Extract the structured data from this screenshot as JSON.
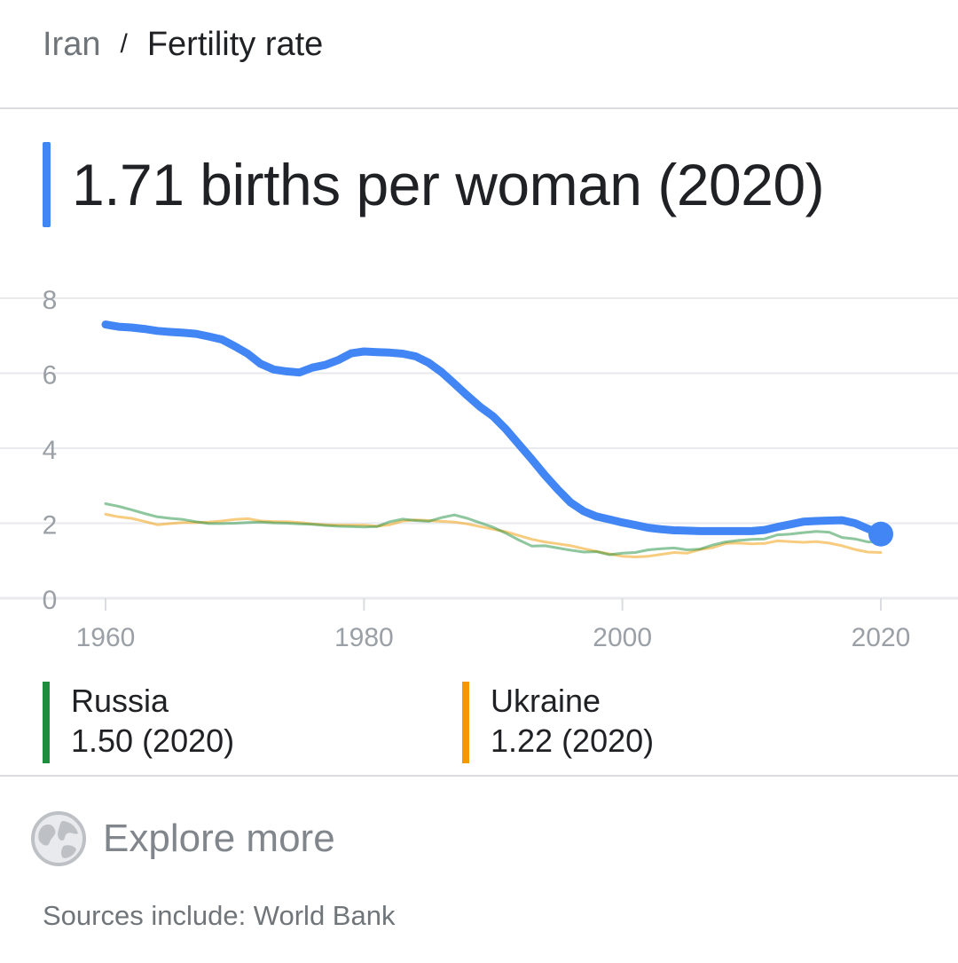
{
  "breadcrumb": {
    "country": "Iran",
    "separator": "/",
    "topic": "Fertility rate"
  },
  "headline": {
    "value_text": "1.71 births per woman (2020)",
    "accent_color": "#4285F4"
  },
  "legend": [
    {
      "name": "Russia",
      "value_text": "1.50 (2020)",
      "color": "#1E8E3E"
    },
    {
      "name": "Ukraine",
      "value_text": "1.22 (2020)",
      "color": "#F29900"
    }
  ],
  "explore": {
    "label": "Explore more",
    "icon": "globe-icon"
  },
  "sources": {
    "text": "Sources include: World Bank"
  },
  "chart_data": {
    "type": "line",
    "x_ticks": [
      "1960",
      "1980",
      "2000",
      "2020"
    ],
    "y_ticks": [
      "0",
      "2",
      "4",
      "6",
      "8"
    ],
    "xlim": [
      1960,
      2020
    ],
    "ylim": [
      0,
      8
    ],
    "grid": true,
    "series": [
      {
        "name": "Iran",
        "color": "#4285F4",
        "x": [
          1960,
          1961,
          1962,
          1963,
          1964,
          1965,
          1966,
          1967,
          1968,
          1969,
          1970,
          1971,
          1972,
          1973,
          1974,
          1975,
          1976,
          1977,
          1978,
          1979,
          1980,
          1981,
          1982,
          1983,
          1984,
          1985,
          1986,
          1987,
          1988,
          1989,
          1990,
          1991,
          1992,
          1993,
          1994,
          1995,
          1996,
          1997,
          1998,
          1999,
          2000,
          2001,
          2002,
          2003,
          2004,
          2005,
          2006,
          2007,
          2008,
          2009,
          2010,
          2011,
          2012,
          2013,
          2014,
          2015,
          2016,
          2017,
          2018,
          2019,
          2020
        ],
        "y": [
          7.3,
          7.24,
          7.22,
          7.18,
          7.13,
          7.1,
          7.08,
          7.05,
          6.98,
          6.9,
          6.72,
          6.52,
          6.25,
          6.1,
          6.05,
          6.02,
          6.15,
          6.22,
          6.35,
          6.53,
          6.58,
          6.56,
          6.55,
          6.52,
          6.45,
          6.28,
          6.03,
          5.72,
          5.4,
          5.1,
          4.85,
          4.5,
          4.1,
          3.7,
          3.28,
          2.9,
          2.55,
          2.32,
          2.18,
          2.1,
          2.02,
          1.95,
          1.88,
          1.84,
          1.81,
          1.8,
          1.79,
          1.79,
          1.79,
          1.79,
          1.79,
          1.82,
          1.9,
          1.97,
          2.04,
          2.06,
          2.07,
          2.08,
          2.0,
          1.85,
          1.71
        ]
      },
      {
        "name": "Russia",
        "color": "#1E8E3E",
        "x": [
          1960,
          1961,
          1962,
          1963,
          1964,
          1965,
          1966,
          1967,
          1968,
          1969,
          1970,
          1971,
          1972,
          1973,
          1974,
          1975,
          1976,
          1977,
          1978,
          1979,
          1980,
          1981,
          1982,
          1983,
          1984,
          1985,
          1986,
          1987,
          1988,
          1989,
          1990,
          1991,
          1992,
          1993,
          1994,
          1995,
          1996,
          1997,
          1998,
          1999,
          2000,
          2001,
          2002,
          2003,
          2004,
          2005,
          2006,
          2007,
          2008,
          2009,
          2010,
          2011,
          2012,
          2013,
          2014,
          2015,
          2016,
          2017,
          2018,
          2019,
          2020
        ],
        "y": [
          2.52,
          2.45,
          2.36,
          2.26,
          2.17,
          2.13,
          2.1,
          2.04,
          1.99,
          1.99,
          2.0,
          2.02,
          2.03,
          2.01,
          2.0,
          1.98,
          1.97,
          1.94,
          1.92,
          1.91,
          1.9,
          1.91,
          2.04,
          2.11,
          2.07,
          2.05,
          2.15,
          2.22,
          2.13,
          2.01,
          1.89,
          1.73,
          1.55,
          1.39,
          1.4,
          1.34,
          1.28,
          1.23,
          1.24,
          1.16,
          1.2,
          1.22,
          1.29,
          1.32,
          1.34,
          1.29,
          1.31,
          1.42,
          1.5,
          1.54,
          1.57,
          1.58,
          1.69,
          1.71,
          1.75,
          1.78,
          1.76,
          1.62,
          1.58,
          1.5,
          1.5
        ]
      },
      {
        "name": "Ukraine",
        "color": "#F29900",
        "x": [
          1960,
          1961,
          1962,
          1963,
          1964,
          1965,
          1966,
          1967,
          1968,
          1969,
          1970,
          1971,
          1972,
          1973,
          1974,
          1975,
          1976,
          1977,
          1978,
          1979,
          1980,
          1981,
          1982,
          1983,
          1984,
          1985,
          1986,
          1987,
          1988,
          1989,
          1990,
          1991,
          1992,
          1993,
          1994,
          1995,
          1996,
          1997,
          1998,
          1999,
          2000,
          2001,
          2002,
          2003,
          2004,
          2005,
          2006,
          2007,
          2008,
          2009,
          2010,
          2011,
          2012,
          2013,
          2014,
          2015,
          2016,
          2017,
          2018,
          2019,
          2020
        ],
        "y": [
          2.24,
          2.17,
          2.13,
          2.05,
          1.96,
          1.99,
          2.02,
          2.02,
          2.03,
          2.06,
          2.1,
          2.12,
          2.06,
          2.04,
          2.04,
          2.02,
          1.98,
          1.96,
          1.95,
          1.95,
          1.95,
          1.92,
          1.96,
          2.06,
          2.09,
          2.07,
          2.05,
          2.03,
          1.98,
          1.91,
          1.84,
          1.77,
          1.67,
          1.57,
          1.5,
          1.45,
          1.4,
          1.32,
          1.25,
          1.18,
          1.12,
          1.1,
          1.12,
          1.17,
          1.22,
          1.2,
          1.3,
          1.35,
          1.46,
          1.47,
          1.45,
          1.46,
          1.53,
          1.51,
          1.49,
          1.51,
          1.47,
          1.4,
          1.3,
          1.23,
          1.22
        ]
      }
    ]
  }
}
